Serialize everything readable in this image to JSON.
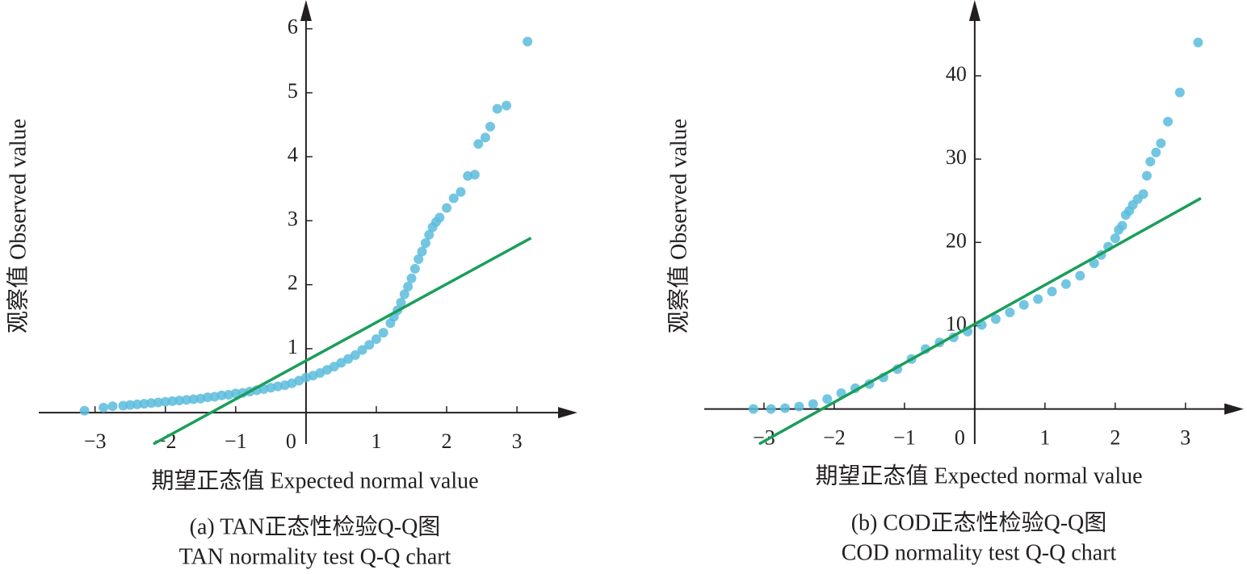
{
  "chart_data": [
    {
      "type": "scatter",
      "caption": [
        "(a) TAN正态性检验Q-Q图",
        "TAN normality test Q-Q chart"
      ],
      "xlabel": "期望正态值 Expected normal value",
      "ylabel": "观察值 Observed value",
      "xlim": [
        -3.8,
        3.86
      ],
      "ylim": [
        -0.49,
        6.45
      ],
      "xticks": [
        {
          "value": -3,
          "label": "−3"
        },
        {
          "value": -2,
          "label": "−2"
        },
        {
          "value": -1,
          "label": "−1"
        },
        0,
        1,
        2,
        3
      ],
      "yticks": [
        1,
        2,
        3,
        4,
        5,
        6
      ],
      "series": [
        {
          "color": "#5bbcdc",
          "x": [
            -3.15,
            -2.88,
            -2.75,
            -2.6,
            -2.5,
            -2.4,
            -2.3,
            -2.2,
            -2.1,
            -2.0,
            -1.9,
            -1.8,
            -1.7,
            -1.6,
            -1.5,
            -1.4,
            -1.3,
            -1.2,
            -1.1,
            -1.0,
            -0.9,
            -0.8,
            -0.7,
            -0.6,
            -0.5,
            -0.4,
            -0.3,
            -0.2,
            -0.1,
            0,
            0.1,
            0.2,
            0.3,
            0.4,
            0.5,
            0.6,
            0.7,
            0.8,
            0.9,
            1.0,
            1.1,
            1.2,
            1.25,
            1.3,
            1.35,
            1.4,
            1.45,
            1.5,
            1.55,
            1.6,
            1.65,
            1.7,
            1.75,
            1.8,
            1.85,
            1.9,
            2.0,
            2.1,
            2.2,
            2.3,
            2.4,
            2.45,
            2.55,
            2.62,
            2.72,
            2.85,
            3.15
          ],
          "values": [
            0.03,
            0.08,
            0.1,
            0.11,
            0.12,
            0.13,
            0.14,
            0.15,
            0.16,
            0.17,
            0.18,
            0.19,
            0.2,
            0.21,
            0.22,
            0.24,
            0.25,
            0.27,
            0.28,
            0.3,
            0.31,
            0.33,
            0.35,
            0.37,
            0.39,
            0.41,
            0.43,
            0.46,
            0.5,
            0.55,
            0.58,
            0.62,
            0.67,
            0.72,
            0.78,
            0.84,
            0.9,
            0.98,
            1.06,
            1.15,
            1.25,
            1.4,
            1.5,
            1.6,
            1.72,
            1.85,
            1.97,
            2.1,
            2.25,
            2.4,
            2.52,
            2.65,
            2.78,
            2.9,
            2.98,
            3.05,
            3.2,
            3.35,
            3.45,
            3.7,
            3.72,
            4.2,
            4.3,
            4.47,
            4.75,
            4.8,
            5.8
          ]
        }
      ],
      "fit_line": {
        "color": "#1a9e5a",
        "x": [
          -2.17,
          3.2
        ],
        "values": [
          -0.49,
          2.73
        ]
      }
    },
    {
      "type": "scatter",
      "caption": [
        "(b) COD正态性检验Q-Q图",
        "COD normality test Q-Q chart"
      ],
      "xlabel": "期望正态值 Expected normal value",
      "ylabel": "观察值 Observed value",
      "xlim": [
        -3.85,
        3.83
      ],
      "ylim": [
        -4.2,
        49.1
      ],
      "xticks": [
        {
          "value": -3,
          "label": "−3"
        },
        {
          "value": -2,
          "label": "−2"
        },
        {
          "value": -1,
          "label": "−1"
        },
        0,
        1,
        2,
        3
      ],
      "yticks": [
        10,
        20,
        30,
        40
      ],
      "series": [
        {
          "color": "#5bbcdc",
          "x": [
            -3.15,
            -2.9,
            -2.7,
            -2.5,
            -2.3,
            -2.1,
            -1.9,
            -1.7,
            -1.5,
            -1.3,
            -1.1,
            -0.9,
            -0.7,
            -0.5,
            -0.3,
            -0.1,
            0.1,
            0.3,
            0.5,
            0.7,
            0.9,
            1.1,
            1.3,
            1.5,
            1.7,
            1.8,
            1.9,
            2.0,
            2.05,
            2.1,
            2.15,
            2.2,
            2.25,
            2.32,
            2.4,
            2.45,
            2.5,
            2.58,
            2.65,
            2.75,
            2.92,
            3.18
          ],
          "values": [
            0,
            0,
            0.1,
            0.3,
            0.6,
            1.2,
            1.9,
            2.5,
            3.0,
            3.8,
            4.8,
            6.0,
            7.2,
            8.0,
            8.6,
            9.3,
            10.1,
            10.8,
            11.6,
            12.5,
            13.2,
            14.1,
            15.0,
            16.0,
            17.5,
            18.5,
            19.5,
            20.5,
            21.5,
            22.0,
            23.3,
            23.8,
            24.5,
            25.2,
            25.8,
            28.0,
            29.7,
            30.8,
            31.9,
            34.5,
            38.0,
            44.0
          ]
        }
      ],
      "fit_line": {
        "color": "#1a9e5a",
        "x": [
          -3.07,
          3.22
        ],
        "values": [
          -4.2,
          25.3
        ]
      }
    }
  ]
}
